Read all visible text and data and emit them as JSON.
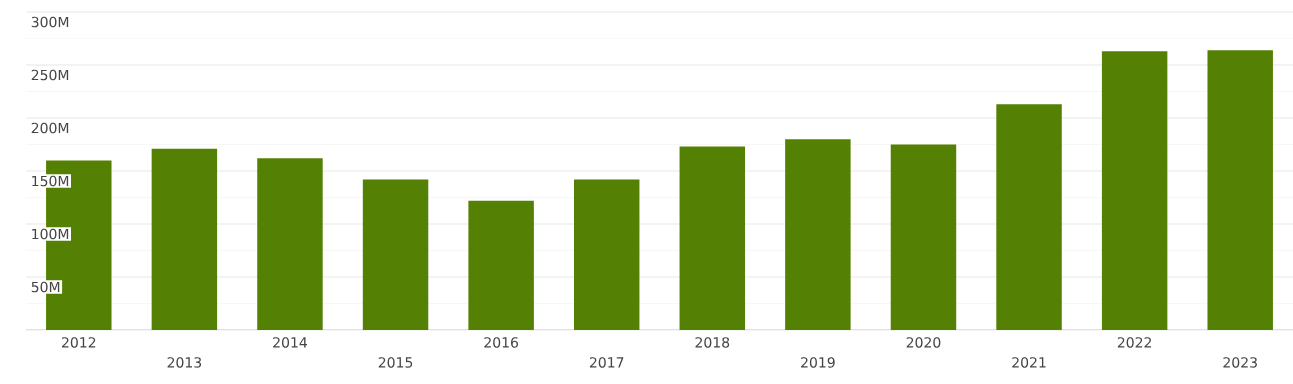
{
  "chart_data": {
    "type": "bar",
    "categories": [
      "2012",
      "2013",
      "2014",
      "2015",
      "2016",
      "2017",
      "2018",
      "2019",
      "2020",
      "2021",
      "2022",
      "2023"
    ],
    "values": [
      160,
      171,
      162,
      142,
      122,
      142,
      173,
      180,
      175,
      213,
      263,
      264
    ],
    "color": "#548003",
    "ylim": [
      0,
      300
    ],
    "yticks": [
      {
        "value": 25,
        "label": null
      },
      {
        "value": 50,
        "label": "50M"
      },
      {
        "value": 75,
        "label": null
      },
      {
        "value": 100,
        "label": "100M"
      },
      {
        "value": 125,
        "label": null
      },
      {
        "value": 150,
        "label": "150M"
      },
      {
        "value": 175,
        "label": null
      },
      {
        "value": 200,
        "label": "200M"
      },
      {
        "value": 225,
        "label": null
      },
      {
        "value": 250,
        "label": "250M"
      },
      {
        "value": 275,
        "label": null
      },
      {
        "value": 300,
        "label": "300M"
      }
    ],
    "grid": "y"
  }
}
